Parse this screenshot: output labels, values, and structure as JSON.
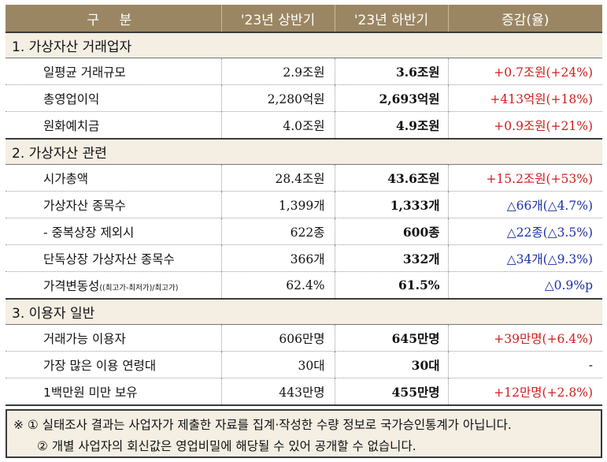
{
  "header": {
    "col1": "구 분",
    "col2": "'23년 상반기",
    "col3": "'23년 하반기",
    "col4": "증감(율)"
  },
  "sections": [
    {
      "title": "1. 가상자산 거래업자",
      "rows": [
        {
          "label": "일평균 거래규모",
          "h1": "2.9조원",
          "h2": "3.6조원",
          "change": "+0.7조원(+24%)",
          "change_color": "red"
        },
        {
          "label": "총영업이익",
          "h1": "2,280억원",
          "h2": "2,693억원",
          "change": "+413억원(+18%)",
          "change_color": "red"
        },
        {
          "label": "원화예치금",
          "h1": "4.0조원",
          "h2": "4.9조원",
          "change": "+0.9조원(+21%)",
          "change_color": "red"
        }
      ]
    },
    {
      "title": "2. 가상자산 관련",
      "rows": [
        {
          "label": "시가총액",
          "h1": "28.4조원",
          "h2": "43.6조원",
          "change": "+15.2조원(+53%)",
          "change_color": "red"
        },
        {
          "label": "가상자산 종목수",
          "h1": "1,399개",
          "h2": "1,333개",
          "change": "△66개(△4.7%)",
          "change_color": "blue"
        },
        {
          "label": "- 중복상장 제외시",
          "h1": "622종",
          "h2": "600종",
          "change": "△22종(△3.5%)",
          "change_color": "blue"
        },
        {
          "label": "단독상장 가상자산 종목수",
          "h1": "366개",
          "h2": "332개",
          "change": "△34개(△9.3%)",
          "change_color": "blue"
        },
        {
          "label": "가격변동성",
          "label_note": "((최고가-최저가)/최고가)",
          "h1": "62.4%",
          "h2": "61.5%",
          "change": "△0.9%p",
          "change_color": "blue"
        }
      ]
    },
    {
      "title": "3. 이용자 일반",
      "rows": [
        {
          "label": "거래가능 이용자",
          "h1": "606만명",
          "h2": "645만명",
          "change": "+39만명(+6.4%)",
          "change_color": "red"
        },
        {
          "label": "가장 많은 이용 연령대",
          "h1": "30대",
          "h2": "30대",
          "change": "-",
          "change_color": "dark"
        },
        {
          "label": "1백만원 미만 보유",
          "h1": "443만명",
          "h2": "455만명",
          "change": "+12만명(+2.8%)",
          "change_color": "red"
        }
      ]
    }
  ],
  "notes": {
    "line1": "※ ① 실태조사 결과는 사업자가 제출한 자료를 집계·작성한 수량 정보로 국가승인통계가 아닙니다.",
    "line2": "② 개별 사업자의 회신값은 영업비밀에 해당될 수 있어 공개할 수 없습니다."
  },
  "colors": {
    "header_bg": "#9b8663",
    "section_bg": "#f4eee3",
    "increase": "#d01c1c",
    "decrease": "#1a2fa5"
  }
}
